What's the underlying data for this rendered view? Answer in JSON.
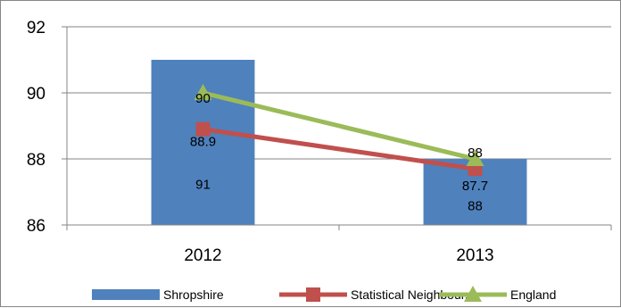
{
  "chart_data": {
    "type": "bar",
    "categories": [
      "2012",
      "2013"
    ],
    "ylim": [
      86,
      92
    ],
    "yticks": [
      86,
      88,
      90,
      92
    ],
    "grid": true,
    "legend_position": "bottom",
    "series": [
      {
        "name": "Shropshire",
        "type": "bar",
        "color": "#4F81BD",
        "values": [
          91,
          88
        ],
        "data_labels": [
          "91",
          "88"
        ]
      },
      {
        "name": "Statistical Neighbours",
        "type": "line",
        "marker": "square",
        "color": "#C0504D",
        "values": [
          88.9,
          87.7
        ],
        "data_labels": [
          "88.9",
          "87.7"
        ]
      },
      {
        "name": "England",
        "type": "line",
        "marker": "triangle",
        "color": "#9BBB59",
        "values": [
          90,
          88
        ],
        "data_labels": [
          "90",
          "88"
        ]
      }
    ]
  }
}
